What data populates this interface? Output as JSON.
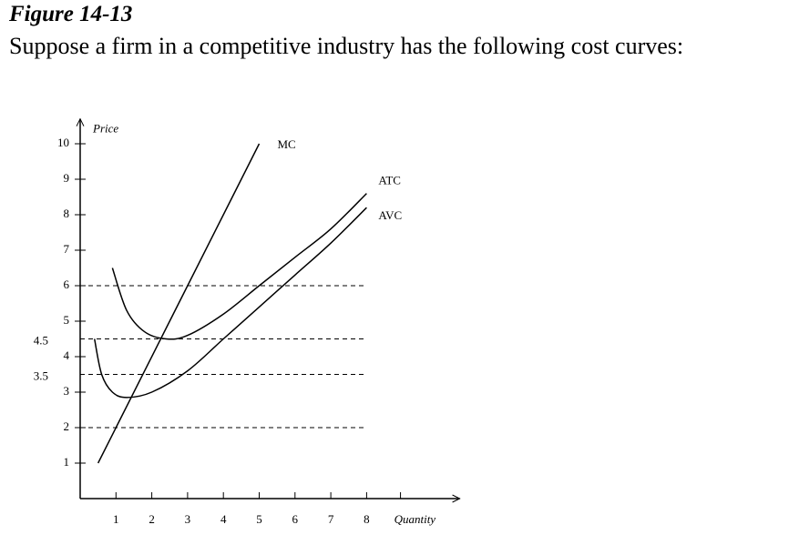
{
  "figure_label": "Figure 14-13",
  "question": "Suppose a firm in a competitive industry has the following cost curves:",
  "chart_data": {
    "type": "line",
    "xlabel": "Quantity",
    "ylabel": "Price",
    "xlim": [
      0,
      10.6
    ],
    "ylim": [
      0,
      10.7
    ],
    "xticks": [
      1,
      2,
      3,
      4,
      5,
      6,
      7,
      8
    ],
    "yticks": [
      1,
      2,
      3,
      4,
      5,
      6,
      7,
      8,
      9,
      10
    ],
    "extra_ytick_labels": [
      4.5,
      3.5
    ],
    "reference_lines": [
      6,
      4.5,
      3.5,
      2
    ],
    "series": [
      {
        "name": "MC",
        "color": "#000000",
        "x": [
          0.5,
          5
        ],
        "values": [
          1,
          10
        ]
      },
      {
        "name": "ATC",
        "color": "#000000",
        "x": [
          0.9,
          1.3,
          1.8,
          2.4,
          3,
          4,
          5,
          6,
          7,
          8
        ],
        "values": [
          6.5,
          5.3,
          4.7,
          4.5,
          4.6,
          5.2,
          6,
          6.8,
          7.6,
          8.6
        ]
      },
      {
        "name": "AVC",
        "color": "#000000",
        "x": [
          0.4,
          0.6,
          0.9,
          1.3,
          2,
          3,
          4,
          5,
          6,
          7,
          8
        ],
        "values": [
          4.5,
          3.5,
          3,
          2.85,
          3,
          3.6,
          4.5,
          5.4,
          6.3,
          7.2,
          8.2
        ]
      }
    ]
  }
}
